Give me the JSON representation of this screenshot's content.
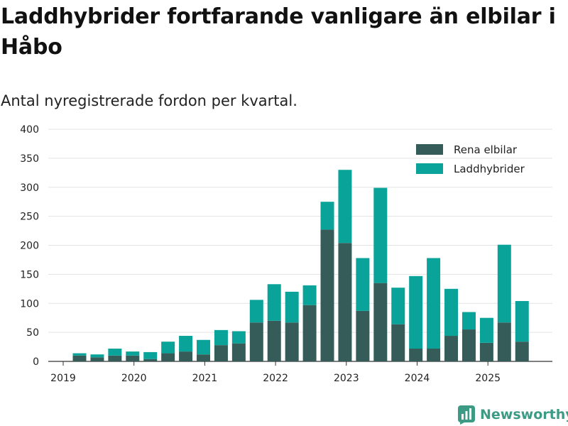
{
  "header": {
    "title": "Laddhybrider fortfarande vanligare än elbilar i Håbo",
    "subtitle": "Antal nyregistrerade fordon per kvartal."
  },
  "brand": {
    "name": "Newsworthy",
    "icon": "newsworthy-logo-icon",
    "color": "#3c9a85"
  },
  "chart_data": {
    "type": "bar",
    "stacked": true,
    "title": "Laddhybrider fortfarande vanligare än elbilar i Håbo",
    "subtitle": "Antal nyregistrerade fordon per kvartal.",
    "xlabel": "",
    "ylabel": "",
    "ylim": [
      0,
      400
    ],
    "yticks": [
      0,
      50,
      100,
      150,
      200,
      250,
      300,
      350,
      400
    ],
    "xticks": [
      "2019",
      "2020",
      "2021",
      "2022",
      "2023",
      "2024",
      "2025"
    ],
    "grid": true,
    "legend_position": "top-right",
    "categories": [
      "2019 Q2",
      "2019 Q3",
      "2019 Q4",
      "2020 Q1",
      "2020 Q2",
      "2020 Q3",
      "2020 Q4",
      "2021 Q1",
      "2021 Q2",
      "2021 Q3",
      "2021 Q4",
      "2022 Q1",
      "2022 Q2",
      "2022 Q3",
      "2022 Q4",
      "2023 Q1",
      "2023 Q2",
      "2023 Q3",
      "2023 Q4",
      "2024 Q1",
      "2024 Q2",
      "2024 Q3",
      "2024 Q4",
      "2025 Q1",
      "2025 Q2",
      "2025 Q3"
    ],
    "series": [
      {
        "name": "Rena elbilar",
        "color": "#355c58",
        "values": [
          10,
          7,
          10,
          10,
          4,
          14,
          17,
          12,
          28,
          31,
          67,
          70,
          67,
          97,
          227,
          204,
          87,
          135,
          64,
          22,
          22,
          44,
          55,
          32,
          67,
          34
        ]
      },
      {
        "name": "Laddhybrider",
        "color": "#0aa39a",
        "values": [
          4,
          5,
          12,
          7,
          12,
          20,
          27,
          25,
          26,
          21,
          39,
          63,
          53,
          34,
          48,
          126,
          91,
          164,
          63,
          125,
          156,
          81,
          30,
          43,
          134,
          70
        ]
      }
    ]
  }
}
